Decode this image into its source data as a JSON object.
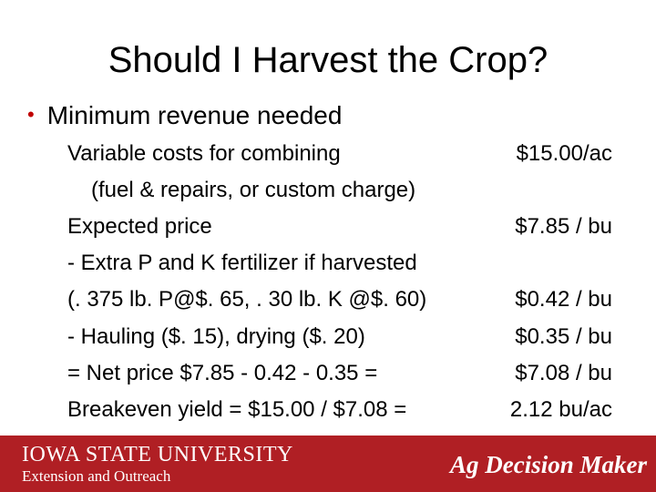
{
  "slide": {
    "title": "Should I Harvest the Crop?",
    "bullet": "Minimum revenue needed",
    "rows": [
      {
        "label": "Variable costs for combining",
        "value": "$15.00/ac"
      },
      {
        "label": "(fuel & repairs, or custom charge)",
        "value": ""
      },
      {
        "label": "Expected price",
        "value": "$7.85 / bu"
      },
      {
        "label": "- Extra P and K fertilizer if harvested",
        "value": ""
      },
      {
        "label": "(. 375 lb. P@$. 65, . 30 lb. K @$. 60)",
        "value": "$0.42 / bu"
      },
      {
        "label": "- Hauling ($. 15), drying ($. 20)",
        "value": "$0.35 / bu"
      },
      {
        "label": "= Net price $7.85 - 0.42 - 0.35 =",
        "value": "$7.08 / bu"
      },
      {
        "label": "Breakeven yield = $15.00 / $7.08 =",
        "value": "2.12 bu/ac"
      }
    ]
  },
  "footer": {
    "university": "IOWA STATE UNIVERSITY",
    "unit": "Extension and Outreach",
    "brand": "Ag Decision Maker",
    "background_color": "#b01f24"
  },
  "colors": {
    "bullet": "#c00000"
  }
}
